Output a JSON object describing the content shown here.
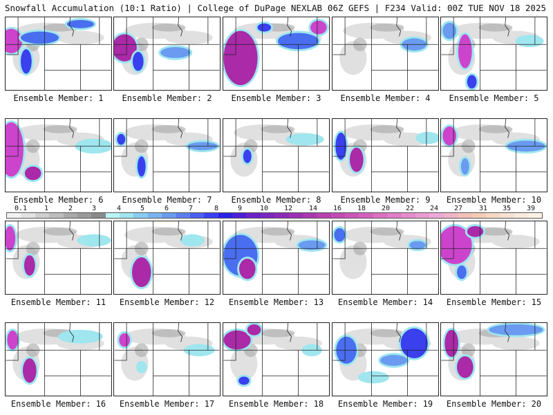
{
  "header": {
    "left": "Snowfall Accumulation (10:1 Ratio) | College of DuPage NEXLAB",
    "right": "06Z GEFS | F234 Valid: 00Z TUE NOV 18 2025"
  },
  "colorbar": {
    "labels": [
      "0.1",
      "1",
      "2",
      "3",
      "4",
      "5",
      "6",
      "7",
      "8",
      "9",
      "10",
      "12",
      "14",
      "16",
      "18",
      "20",
      "22",
      "24",
      "27",
      "31",
      "35",
      "39"
    ],
    "colors": [
      "#f2f2f2",
      "#e2e2e2",
      "#cfcfcf",
      "#bdbdbd",
      "#a9a9a9",
      "#9a9a9a",
      "#8a8a8a",
      "#bdf3f5",
      "#9fe6ef",
      "#86cdf2",
      "#7ab4f0",
      "#6a9bf0",
      "#5b7ff0",
      "#4b5ff0",
      "#3a40ee",
      "#2a22e8",
      "#4c20d8",
      "#6a22c8",
      "#7a26c0",
      "#8c2ab8",
      "#9c30b4",
      "#aa38b0",
      "#b840b0",
      "#c44ab4",
      "#cc55b8",
      "#d462bc",
      "#dc70c2",
      "#e07ec8",
      "#e68ccc",
      "#ea9ad2",
      "#eea8d8",
      "#f0b4c8",
      "#f2c0b8",
      "#f4ccb4",
      "#f6d8c4",
      "#f8e2d4",
      "#faecdc",
      "#fcf2e4"
    ]
  },
  "panels": [
    {
      "caption": "Ensemble Member: 1"
    },
    {
      "caption": "Ensemble Member: 2"
    },
    {
      "caption": "Ensemble Member: 3"
    },
    {
      "caption": "Ensemble Member: 4"
    },
    {
      "caption": "Ensemble Member: 5"
    },
    {
      "caption": "Ensemble Member: 6"
    },
    {
      "caption": "Ensemble Member: 7"
    },
    {
      "caption": "Ensemble Member: 8"
    },
    {
      "caption": "Ensemble Member: 9"
    },
    {
      "caption": "Ensemble Member: 10"
    },
    {
      "caption": "Ensemble Member: 11"
    },
    {
      "caption": "Ensemble Member: 12"
    },
    {
      "caption": "Ensemble Member: 13"
    },
    {
      "caption": "Ensemble Member: 14"
    },
    {
      "caption": "Ensemble Member: 15"
    },
    {
      "caption": "Ensemble Member: 16"
    },
    {
      "caption": "Ensemble Member: 17"
    },
    {
      "caption": "Ensemble Member: 18"
    },
    {
      "caption": "Ensemble Member: 19"
    },
    {
      "caption": "Ensemble Member: 20"
    }
  ]
}
